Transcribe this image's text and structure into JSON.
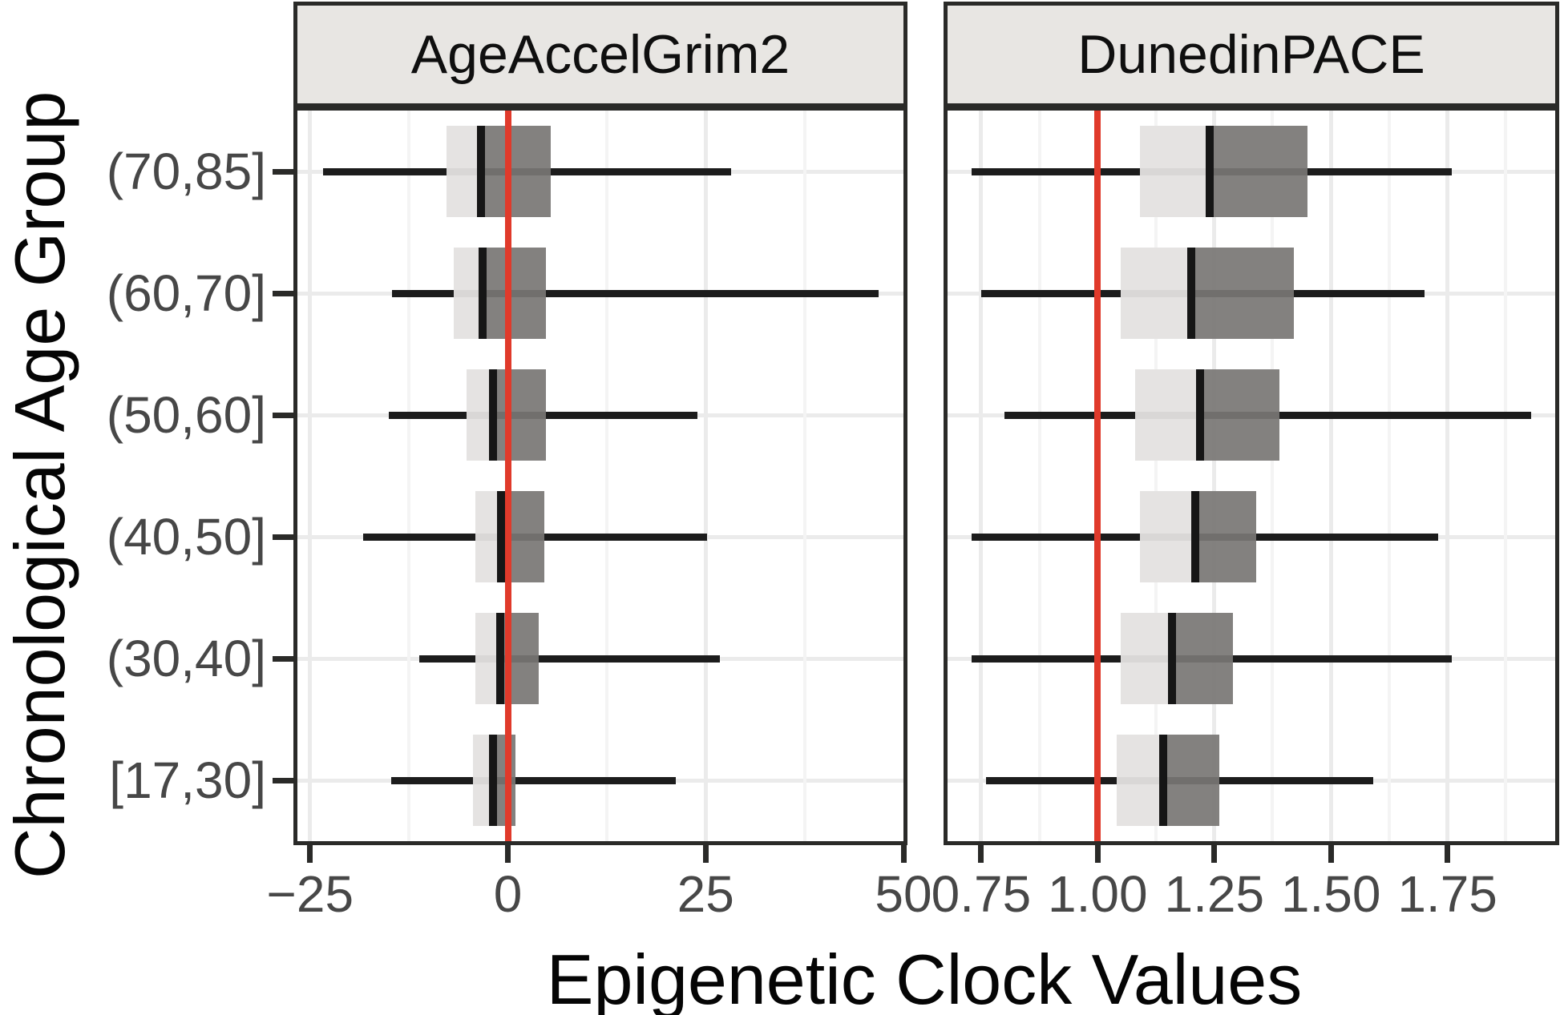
{
  "figure": {
    "x_axis_title": "Epigenetic Clock Values",
    "y_axis_title": "Chronological Age Group"
  },
  "chart_data": {
    "type": "boxplot",
    "orientation": "horizontal",
    "title": "",
    "xlabel": "Epigenetic Clock Values",
    "ylabel": "Chronological Age Group",
    "legend": "none",
    "grid": "major and minor vertical gridlines, major horizontal gridlines",
    "categories": [
      "(70,85]",
      "(60,70]",
      "(50,60]",
      "(40,50]",
      "(30,40]",
      "[17,30]"
    ],
    "facets": [
      {
        "label": "AgeAccelGrim2",
        "xlim": [
          -26.6,
          50
        ],
        "ticks": [
          -25,
          0,
          25,
          50
        ],
        "tick_labels": [
          "−25",
          "0",
          "25",
          "50"
        ],
        "refline": 0,
        "boxes": [
          {
            "category": "(70,85]",
            "whisker_low": -23.4,
            "q1": -7.8,
            "median": -3.4,
            "q3": 5.4,
            "whisker_high": 28.2
          },
          {
            "category": "(60,70]",
            "whisker_low": -14.6,
            "q1": -6.8,
            "median": -3.2,
            "q3": 4.8,
            "whisker_high": 46.9
          },
          {
            "category": "(50,60]",
            "whisker_low": -15.0,
            "q1": -5.2,
            "median": -1.9,
            "q3": 4.8,
            "whisker_high": 24.0
          },
          {
            "category": "(40,50]",
            "whisker_low": -18.3,
            "q1": -4.1,
            "median": -0.9,
            "q3": 4.6,
            "whisker_high": 25.2
          },
          {
            "category": "(30,40]",
            "whisker_low": -11.2,
            "q1": -4.1,
            "median": -1.0,
            "q3": 3.9,
            "whisker_high": 26.8
          },
          {
            "category": "[17,30]",
            "whisker_low": -14.7,
            "q1": -4.4,
            "median": -1.9,
            "q3": 1.0,
            "whisker_high": 21.2
          }
        ]
      },
      {
        "label": "DunedinPACE",
        "xlim": [
          0.678,
          1.981
        ],
        "ticks": [
          0.75,
          1.0,
          1.25,
          1.5,
          1.75
        ],
        "tick_labels": [
          "0.75",
          "1.00",
          "1.25",
          "1.50",
          "1.75"
        ],
        "refline": 1.0,
        "boxes": [
          {
            "category": "(70,85]",
            "whisker_low": 0.73,
            "q1": 1.09,
            "median": 1.24,
            "q3": 1.45,
            "whisker_high": 1.76
          },
          {
            "category": "(60,70]",
            "whisker_low": 0.75,
            "q1": 1.05,
            "median": 1.2,
            "q3": 1.42,
            "whisker_high": 1.7
          },
          {
            "category": "(50,60]",
            "whisker_low": 0.8,
            "q1": 1.08,
            "median": 1.22,
            "q3": 1.39,
            "whisker_high": 1.93
          },
          {
            "category": "(40,50]",
            "whisker_low": 0.73,
            "q1": 1.09,
            "median": 1.21,
            "q3": 1.34,
            "whisker_high": 1.73
          },
          {
            "category": "(30,40]",
            "whisker_low": 0.73,
            "q1": 1.05,
            "median": 1.16,
            "q3": 1.29,
            "whisker_high": 1.76
          },
          {
            "category": "[17,30]",
            "whisker_low": 0.76,
            "q1": 1.04,
            "median": 1.14,
            "q3": 1.26,
            "whisker_high": 1.59
          }
        ]
      }
    ],
    "colors": {
      "reference_line": "#e03a2b",
      "box_lower_half": "#e7e5e3",
      "box_upper_half": "#8c8a88",
      "whisker": "#1c1c1c",
      "median": "#161616",
      "panel_border": "#2a2a28",
      "strip_background": "#e8e6e3",
      "grid_major": "#ebebeb",
      "grid_minor": "#f4f4f4",
      "tick_label": "#474747",
      "title_text": "#050505"
    }
  }
}
